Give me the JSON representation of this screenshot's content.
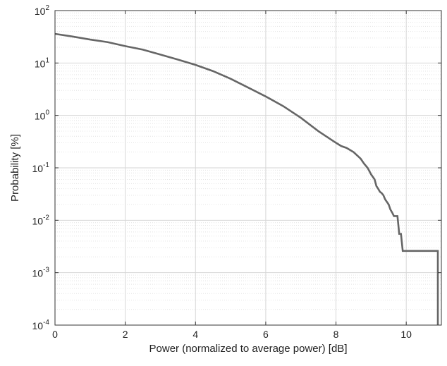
{
  "chart_data": {
    "type": "line",
    "title": "",
    "xlabel": "Power (normalized to average power) [dB]",
    "ylabel": "Probability [%]",
    "xlim": [
      0,
      11
    ],
    "ylim": [
      0.0001,
      100
    ],
    "yscale": "log",
    "grid": true,
    "minor_grid": true,
    "x_ticks": [
      0,
      2,
      4,
      6,
      8,
      10
    ],
    "x_tick_labels": [
      "0",
      "2",
      "4",
      "6",
      "8",
      "10"
    ],
    "y_ticks": [
      0.0001,
      0.001,
      0.01,
      0.1,
      1,
      10,
      100
    ],
    "y_tick_labels": [
      {
        "base": "10",
        "exp": "-4"
      },
      {
        "base": "10",
        "exp": "-3"
      },
      {
        "base": "10",
        "exp": "-2"
      },
      {
        "base": "10",
        "exp": "-1"
      },
      {
        "base": "10",
        "exp": "0"
      },
      {
        "base": "10",
        "exp": "1"
      },
      {
        "base": "10",
        "exp": "2"
      }
    ],
    "line_color": "#666666",
    "series": [
      {
        "x": [
          0,
          0.5,
          1,
          1.5,
          2,
          2.5,
          3,
          3.5,
          4,
          4.5,
          5,
          5.5,
          6,
          6.5,
          7,
          7.5,
          8,
          8.15,
          8.3,
          8.5,
          8.7,
          8.8,
          8.9,
          9.0,
          9.1,
          9.15,
          9.2,
          9.25,
          9.3,
          9.35,
          9.4,
          9.5,
          9.55,
          9.6,
          9.65,
          9.7,
          9.75,
          9.8,
          9.85,
          9.9,
          10.0,
          10.5,
          10.9,
          10.9
        ],
        "y": [
          36,
          32,
          28,
          25,
          21,
          18,
          14.5,
          11.6,
          9.2,
          7.0,
          5.0,
          3.4,
          2.3,
          1.5,
          0.9,
          0.5,
          0.3,
          0.26,
          0.24,
          0.2,
          0.15,
          0.12,
          0.1,
          0.075,
          0.06,
          0.045,
          0.04,
          0.035,
          0.033,
          0.03,
          0.025,
          0.02,
          0.016,
          0.014,
          0.012,
          0.012,
          0.012,
          0.0055,
          0.0055,
          0.0026,
          0.0026,
          0.0026,
          0.0026,
          0.0001
        ]
      }
    ]
  }
}
